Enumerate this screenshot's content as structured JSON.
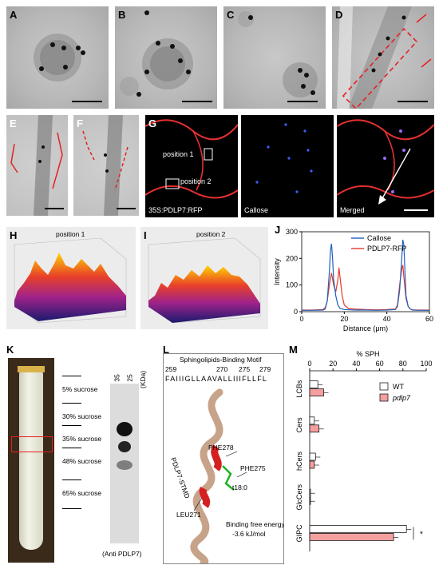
{
  "panels": {
    "A": "A",
    "B": "B",
    "C": "C",
    "D": "D",
    "E": "E",
    "F": "F",
    "G": "G",
    "H": "H",
    "I": "I",
    "J": "J",
    "K": "K",
    "L": "L",
    "M": "M"
  },
  "G": {
    "position1": "position 1",
    "position2": "position 2",
    "sublabel1": "35S:PDLP7:RFP",
    "sublabel2": "Callose",
    "sublabel3": "Merged"
  },
  "H": {
    "title": "position 1"
  },
  "I": {
    "title": "position 2"
  },
  "K": {
    "layers": [
      "5% sucrose",
      "30% sucrose",
      "35% sucrose",
      "48% sucrose",
      "65% sucrose"
    ],
    "kda": "(KDa)",
    "markers": [
      "35",
      "25"
    ],
    "caption": "(Anti PDLP7)"
  },
  "L": {
    "title": "Sphingolipids-Binding Motif",
    "sequence": "FAIIIGLLAAVALLIIIFLLFL",
    "pos_labels": [
      "259",
      "270",
      "275",
      "279"
    ],
    "labels": [
      "PHE278",
      "PHE275",
      "t18:0",
      "LEU271",
      "PDLP7-STMD"
    ],
    "energy_line1": "Binding free energy:",
    "energy_line2": "-3.6 kJ/mol"
  },
  "colors": {
    "callose": "#1f5fbf",
    "rfp": "#e8392a",
    "wt_bar": "#ffffff",
    "pdlp7_bar": "#f4a0a0"
  },
  "chart_data": [
    {
      "type": "line",
      "panel": "J",
      "xlabel": "Distance (μm)",
      "ylabel": "Intensity",
      "xlim": [
        0,
        60
      ],
      "ylim": [
        0,
        300
      ],
      "xticks": [
        0,
        20,
        40,
        60
      ],
      "yticks": [
        0,
        100,
        200,
        300
      ],
      "legend": "top-right",
      "series": [
        {
          "name": "Callose",
          "x": [
            0,
            5,
            10,
            11,
            12,
            13,
            13.5,
            14,
            14.5,
            15,
            16,
            17,
            18,
            20,
            25,
            30,
            35,
            40,
            44,
            45,
            46,
            47,
            47.5,
            48,
            48.5,
            49,
            50,
            51,
            52,
            55,
            60,
            62
          ],
          "y": [
            5,
            5,
            6,
            10,
            40,
            150,
            230,
            255,
            200,
            120,
            60,
            25,
            12,
            8,
            6,
            6,
            5,
            6,
            8,
            20,
            80,
            200,
            270,
            250,
            150,
            60,
            20,
            10,
            6,
            5,
            5,
            5
          ]
        },
        {
          "name": "PDLP7-RFP",
          "x": [
            0,
            5,
            10,
            11,
            12,
            13,
            14,
            15,
            16,
            17,
            17.5,
            18,
            19,
            20,
            22,
            25,
            30,
            35,
            40,
            44,
            45,
            46,
            47,
            47.5,
            48,
            49,
            50,
            51,
            52,
            55,
            60,
            62
          ],
          "y": [
            6,
            6,
            8,
            15,
            40,
            100,
            145,
            100,
            75,
            120,
            165,
            130,
            60,
            25,
            12,
            10,
            8,
            7,
            8,
            10,
            25,
            100,
            160,
            175,
            130,
            50,
            20,
            10,
            7,
            6,
            6,
            6
          ]
        }
      ]
    },
    {
      "type": "bar",
      "panel": "M",
      "orientation": "horizontal",
      "xlabel": "% SPH",
      "xlim": [
        0,
        100
      ],
      "xticks": [
        0,
        20,
        40,
        60,
        80,
        100
      ],
      "categories": [
        "LCBs",
        "Cers",
        "hCers",
        "GlcCers",
        "GIPC"
      ],
      "legend": "top-right",
      "series": [
        {
          "name": "WT",
          "values": [
            7,
            4,
            5,
            0.5,
            83
          ]
        },
        {
          "name": "pdlp7",
          "values": [
            12,
            8,
            4,
            0.5,
            72
          ]
        }
      ],
      "annotation": "*"
    }
  ]
}
